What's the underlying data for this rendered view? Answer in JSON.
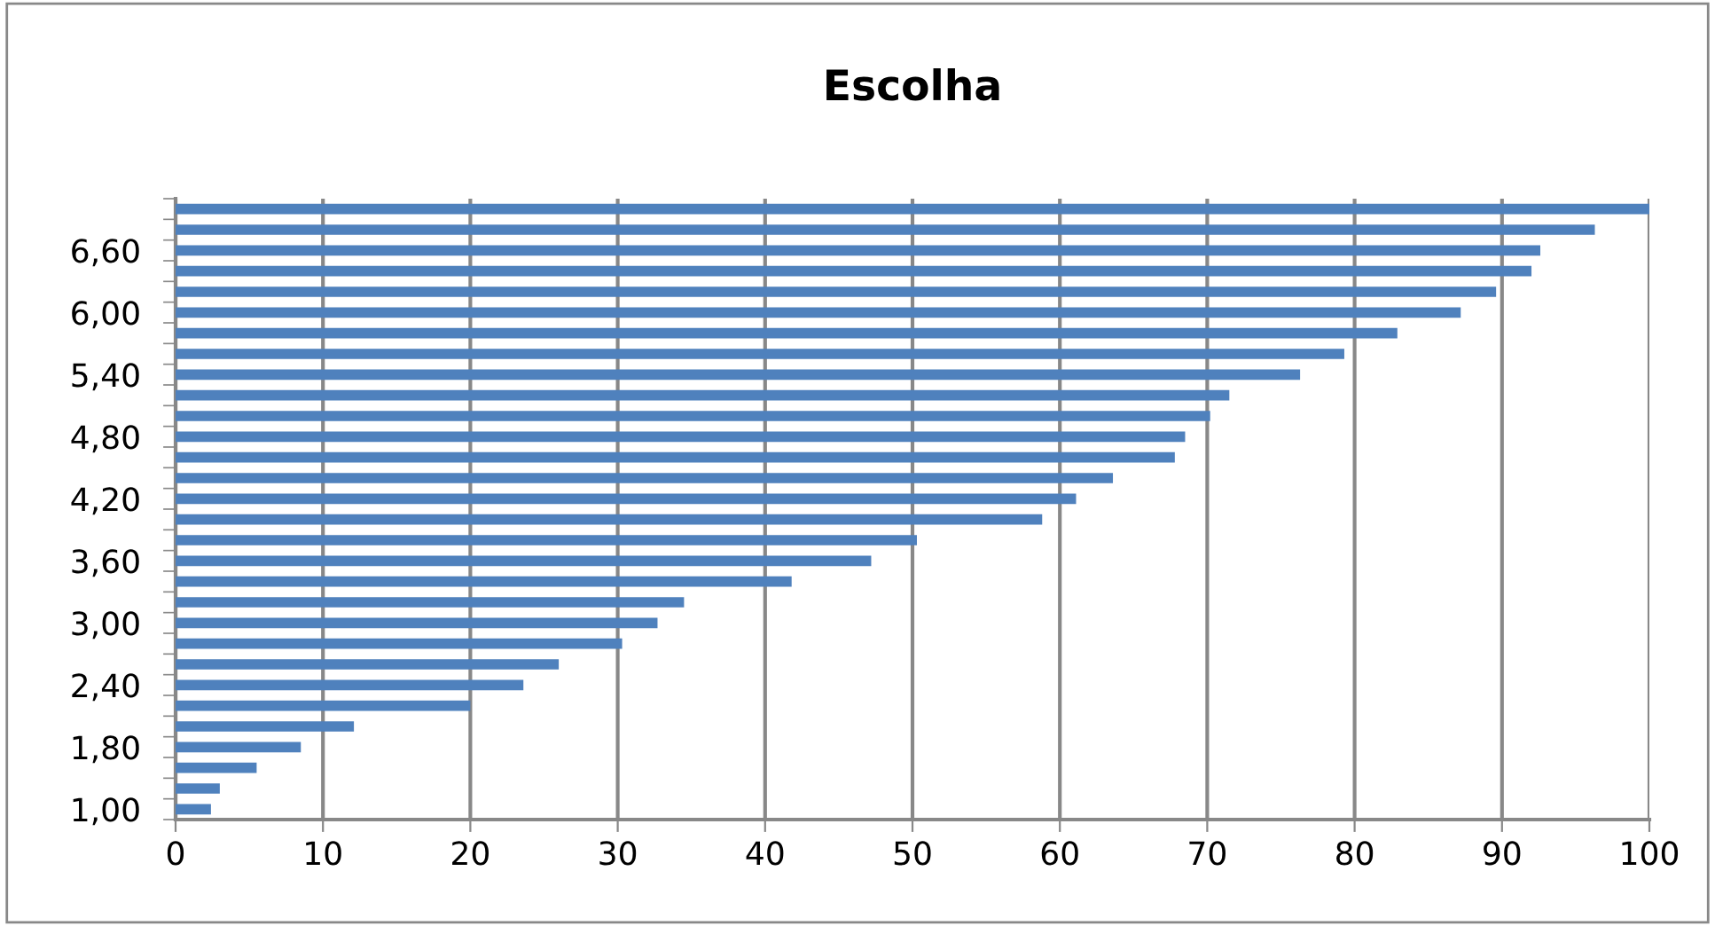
{
  "chart_data": {
    "type": "bar",
    "orientation": "horizontal",
    "title": "Escolha",
    "categories": [
      null,
      null,
      "6,60",
      null,
      null,
      "6,00",
      null,
      null,
      "5,40",
      null,
      null,
      "4,80",
      null,
      null,
      "4,20",
      null,
      null,
      "3,60",
      null,
      null,
      "3,00",
      null,
      null,
      "2,40",
      null,
      null,
      "1,80",
      null,
      null,
      "1,00"
    ],
    "values": [
      100,
      96.3,
      92.6,
      92.0,
      89.6,
      87.2,
      82.9,
      79.3,
      76.3,
      71.5,
      70.2,
      68.5,
      67.8,
      63.6,
      61.1,
      58.8,
      50.3,
      47.2,
      41.8,
      34.5,
      32.7,
      30.3,
      26.0,
      23.6,
      20.0,
      12.1,
      8.5,
      5.5,
      3.0,
      2.4
    ],
    "color": "#4f81bd",
    "xlim": [
      0,
      100
    ],
    "xticks": [
      0,
      10,
      20,
      30,
      40,
      50,
      60,
      70,
      80,
      90,
      100
    ],
    "grid": "x"
  }
}
